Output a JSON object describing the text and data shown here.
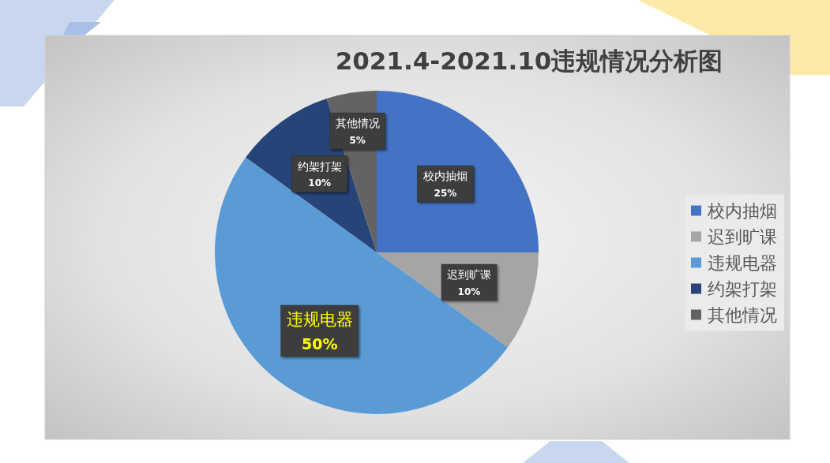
{
  "chart_data": {
    "type": "pie",
    "title": "2021.4-2021.10违规情况分析图",
    "categories": [
      "校内抽烟",
      "迟到旷课",
      "违规电器",
      "约架打架",
      "其他情况"
    ],
    "values": [
      25,
      10,
      50,
      10,
      5
    ],
    "colors": [
      "#4472c4",
      "#a5a5a5",
      "#5b9bd5",
      "#264478",
      "#636363"
    ],
    "value_labels": [
      "25%",
      "10%",
      "50%",
      "10%",
      "5%"
    ],
    "legend": "right"
  }
}
